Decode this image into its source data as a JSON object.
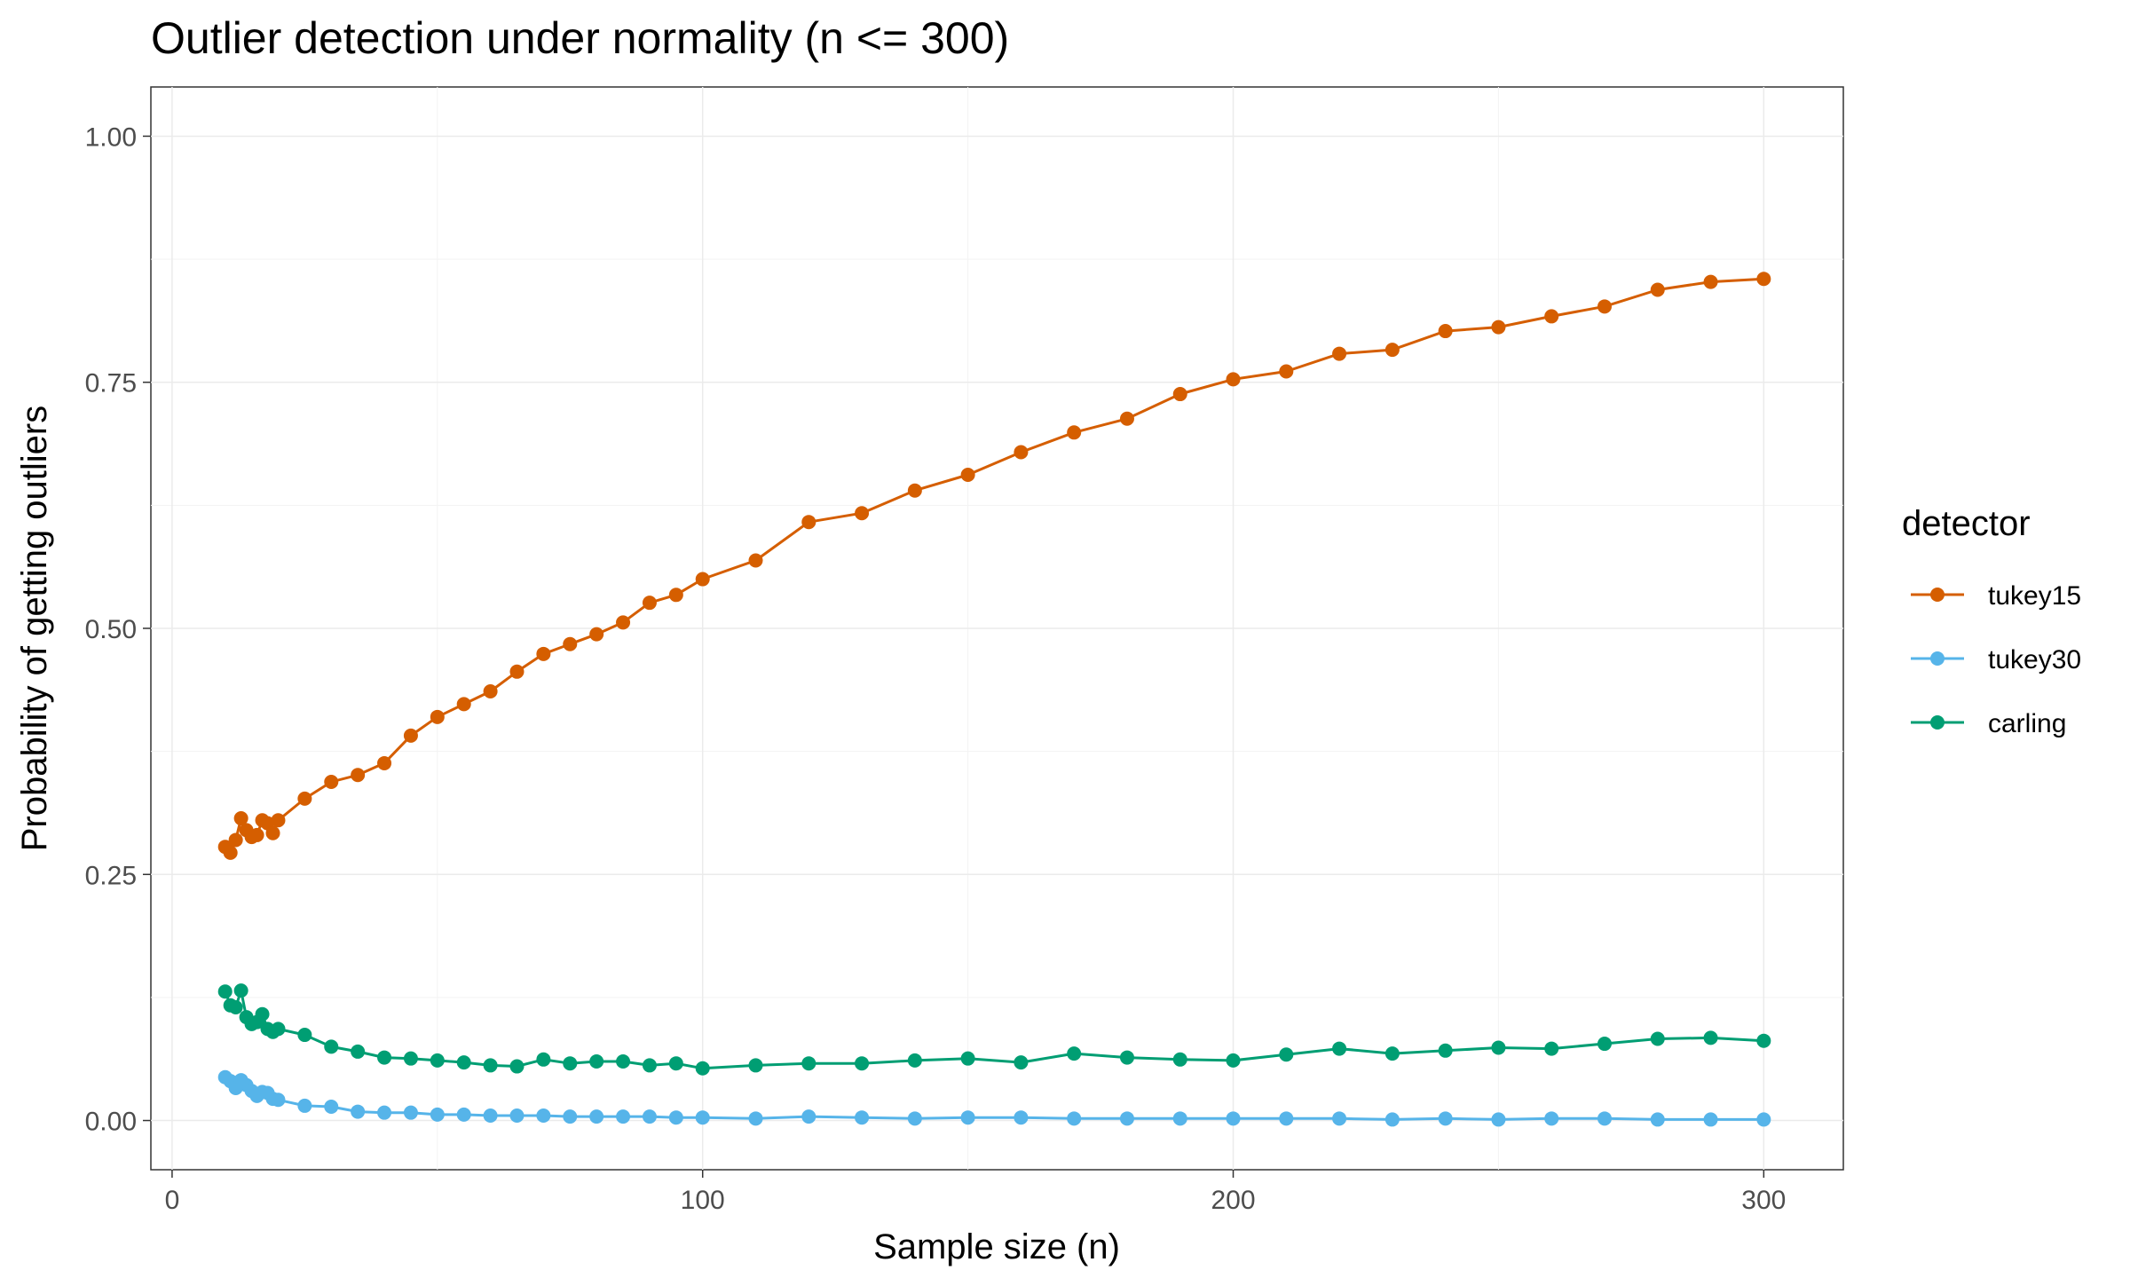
{
  "chart_data": {
    "type": "line",
    "title": "Outlier detection under normality (n <= 300)",
    "xlabel": "Sample size (n)",
    "ylabel": "Probability of getting outliers",
    "xlim": [
      -4,
      315
    ],
    "ylim": [
      -0.05,
      1.05
    ],
    "xticks": [
      0,
      100,
      200,
      300
    ],
    "xtick_labels": [
      "0",
      "100",
      "200",
      "300"
    ],
    "yticks": [
      0,
      0.25,
      0.5,
      0.75,
      1.0
    ],
    "ytick_labels": [
      "0.00",
      "0.25",
      "0.50",
      "0.75",
      "1.00"
    ],
    "grid": true,
    "legend": {
      "title": "detector",
      "position": "right"
    },
    "x": [
      10,
      11,
      12,
      13,
      14,
      15,
      16,
      17,
      18,
      19,
      20,
      25,
      30,
      35,
      40,
      45,
      50,
      55,
      60,
      65,
      70,
      75,
      80,
      85,
      90,
      95,
      100,
      110,
      120,
      130,
      140,
      150,
      160,
      170,
      180,
      190,
      200,
      210,
      220,
      230,
      240,
      250,
      260,
      270,
      280,
      290,
      300
    ],
    "series": [
      {
        "name": "tukey15",
        "color": "#D55E00",
        "values": [
          0.278,
          0.272,
          0.285,
          0.307,
          0.295,
          0.288,
          0.29,
          0.305,
          0.302,
          0.292,
          0.305,
          0.327,
          0.344,
          0.351,
          0.363,
          0.391,
          0.41,
          0.423,
          0.436,
          0.456,
          0.474,
          0.484,
          0.494,
          0.506,
          0.526,
          0.534,
          0.55,
          0.569,
          0.608,
          0.617,
          0.64,
          0.656,
          0.679,
          0.699,
          0.713,
          0.738,
          0.753,
          0.761,
          0.779,
          0.783,
          0.802,
          0.806,
          0.817,
          0.827,
          0.844,
          0.852,
          0.855
        ]
      },
      {
        "name": "tukey30",
        "color": "#56B4E9",
        "values": [
          0.044,
          0.04,
          0.033,
          0.041,
          0.036,
          0.03,
          0.025,
          0.029,
          0.028,
          0.022,
          0.021,
          0.015,
          0.014,
          0.009,
          0.008,
          0.008,
          0.006,
          0.006,
          0.005,
          0.005,
          0.005,
          0.004,
          0.004,
          0.004,
          0.004,
          0.003,
          0.003,
          0.002,
          0.004,
          0.003,
          0.002,
          0.003,
          0.003,
          0.002,
          0.002,
          0.002,
          0.002,
          0.002,
          0.002,
          0.001,
          0.002,
          0.001,
          0.002,
          0.002,
          0.001,
          0.001,
          0.001
        ]
      },
      {
        "name": "carling",
        "color": "#009E73",
        "values": [
          0.131,
          0.117,
          0.115,
          0.132,
          0.105,
          0.098,
          0.1,
          0.108,
          0.093,
          0.09,
          0.093,
          0.087,
          0.075,
          0.07,
          0.064,
          0.063,
          0.061,
          0.059,
          0.056,
          0.055,
          0.062,
          0.058,
          0.06,
          0.06,
          0.056,
          0.058,
          0.053,
          0.056,
          0.058,
          0.058,
          0.061,
          0.063,
          0.059,
          0.068,
          0.064,
          0.062,
          0.061,
          0.067,
          0.073,
          0.068,
          0.071,
          0.074,
          0.073,
          0.078,
          0.083,
          0.084,
          0.081
        ]
      }
    ]
  }
}
